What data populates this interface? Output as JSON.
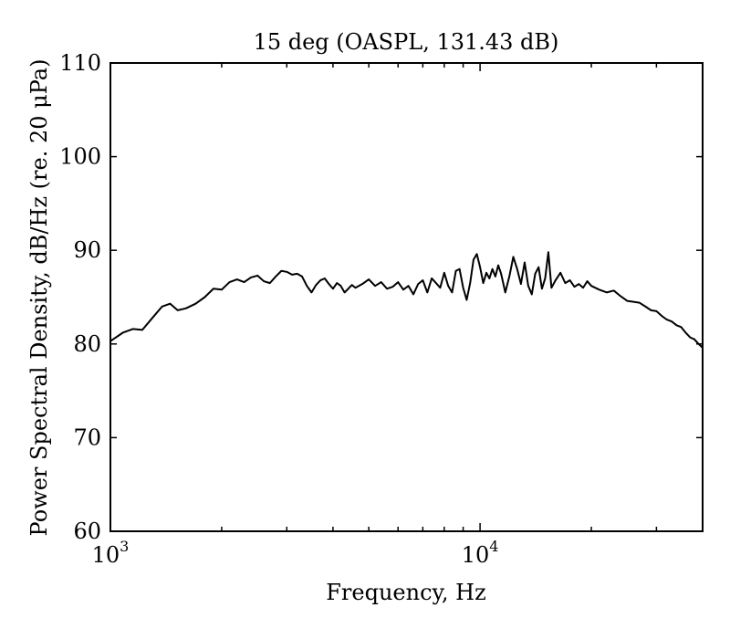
{
  "chart_data": {
    "type": "line",
    "title": "15 deg (OASPL, 131.43 dB)",
    "xlabel": "Frequency, Hz",
    "ylabel": "Power Spectral Density, dB/Hz (re. 20 μPa)",
    "x_scale": "log",
    "xlim": [
      1000,
      40000
    ],
    "ylim": [
      60,
      110
    ],
    "grid": false,
    "line_color": "#000000",
    "x_ticks": [
      {
        "value": 1000,
        "base": "10",
        "exp": "3"
      },
      {
        "value": 10000,
        "base": "10",
        "exp": "4"
      }
    ],
    "y_ticks": [
      60,
      70,
      80,
      90,
      100,
      110
    ],
    "series": [
      {
        "x": [
          1000,
          1080,
          1150,
          1220,
          1300,
          1380,
          1450,
          1520,
          1600,
          1700,
          1800,
          1900,
          2000,
          2100,
          2200,
          2300,
          2400,
          2500,
          2600,
          2700,
          2800,
          2900,
          3000,
          3100,
          3200,
          3300,
          3400,
          3500,
          3600,
          3700,
          3800,
          3900,
          4000,
          4100,
          4200,
          4300,
          4400,
          4500,
          4600,
          4800,
          5000,
          5200,
          5400,
          5600,
          5800,
          6000,
          6200,
          6400,
          6600,
          6800,
          7000,
          7200,
          7400,
          7600,
          7800,
          8000,
          8200,
          8400,
          8600,
          8800,
          9000,
          9200,
          9400,
          9600,
          9800,
          10000,
          10200,
          10400,
          10600,
          10800,
          11000,
          11200,
          11400,
          11700,
          12000,
          12300,
          12600,
          12900,
          13200,
          13500,
          13800,
          14100,
          14400,
          14700,
          15000,
          15300,
          15600,
          16000,
          16500,
          17000,
          17500,
          18000,
          18500,
          19000,
          19500,
          20000,
          21000,
          22000,
          23000,
          24000,
          25000,
          26000,
          27000,
          28000,
          29000,
          30000,
          31000,
          32000,
          33000,
          34000,
          35000,
          36000,
          37000,
          38000,
          39000,
          40000
        ],
        "y": [
          80.3,
          81.2,
          81.6,
          81.5,
          82.8,
          84.0,
          84.3,
          83.6,
          83.8,
          84.3,
          85.0,
          85.9,
          85.8,
          86.6,
          86.9,
          86.6,
          87.1,
          87.3,
          86.7,
          86.5,
          87.2,
          87.8,
          87.7,
          87.4,
          87.5,
          87.2,
          86.2,
          85.5,
          86.3,
          86.8,
          87.0,
          86.4,
          85.9,
          86.5,
          86.2,
          85.5,
          85.9,
          86.3,
          86.0,
          86.4,
          86.9,
          86.2,
          86.6,
          85.9,
          86.1,
          86.6,
          85.8,
          86.2,
          85.3,
          86.4,
          86.8,
          85.5,
          87.0,
          86.5,
          86.0,
          87.6,
          86.2,
          85.5,
          87.8,
          88.0,
          86.0,
          84.7,
          86.5,
          89.0,
          89.6,
          88.2,
          86.5,
          87.6,
          87.0,
          88.0,
          87.2,
          88.4,
          87.5,
          85.5,
          87.2,
          89.3,
          88.0,
          86.4,
          88.7,
          86.2,
          85.3,
          87.5,
          88.2,
          85.9,
          87.0,
          89.8,
          86.0,
          86.8,
          87.6,
          86.5,
          86.8,
          86.1,
          86.4,
          86.0,
          86.7,
          86.2,
          85.8,
          85.5,
          85.7,
          85.1,
          84.6,
          84.5,
          84.4,
          84.0,
          83.6,
          83.5,
          83.0,
          82.6,
          82.4,
          82.0,
          81.8,
          81.2,
          80.7,
          80.5,
          80.0,
          79.6
        ]
      }
    ]
  }
}
